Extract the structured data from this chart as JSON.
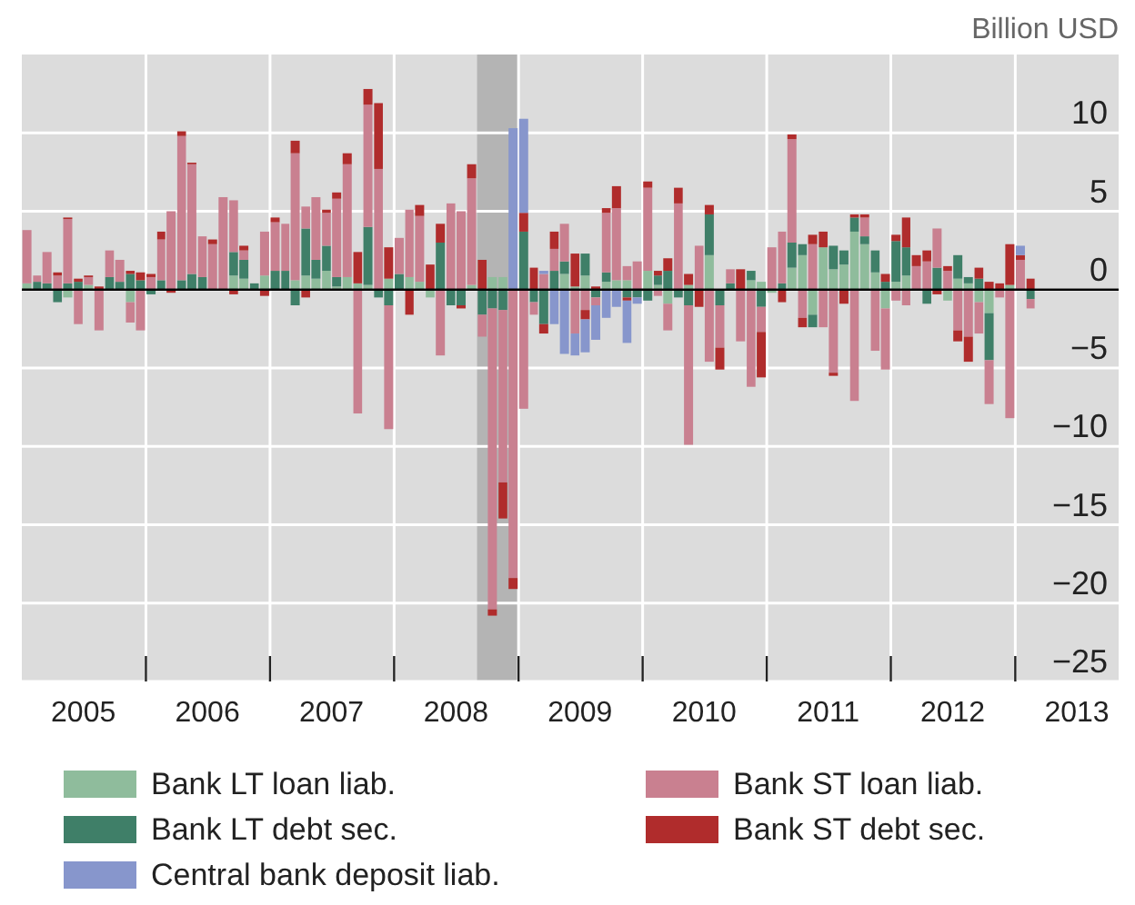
{
  "chart_data": {
    "type": "bar",
    "stacked": true,
    "ylabel": "Billion USD",
    "grid": true,
    "legend": "bottom",
    "xlim": [
      "2005-01",
      "2013-11"
    ],
    "ylim": [
      -25,
      15
    ],
    "yticks": [
      {
        "value": -25,
        "label": "−25"
      },
      {
        "value": -20,
        "label": "−20"
      },
      {
        "value": -15,
        "label": "−15"
      },
      {
        "value": -10,
        "label": "−10"
      },
      {
        "value": -5,
        "label": "−5"
      },
      0,
      5,
      10
    ],
    "xticks": [
      {
        "value": "2005-07",
        "label": "2005"
      },
      {
        "value": "2006",
        "label": null
      },
      {
        "value": "2006-07",
        "label": "2006"
      },
      {
        "value": "2007",
        "label": null
      },
      {
        "value": "2007-07",
        "label": "2007"
      },
      {
        "value": "2008",
        "label": null
      },
      {
        "value": "2008-07",
        "label": "2008"
      },
      {
        "value": "2009",
        "label": null
      },
      {
        "value": "2009-07",
        "label": "2009"
      },
      {
        "value": "2010",
        "label": null
      },
      {
        "value": "2010-07",
        "label": "2010"
      },
      {
        "value": "2011",
        "label": null
      },
      {
        "value": "2011-07",
        "label": "2011"
      },
      {
        "value": "2012",
        "label": null
      },
      {
        "value": "2012-07",
        "label": "2012"
      },
      {
        "value": "2013",
        "label": null
      },
      {
        "value": "2013-07",
        "label": "2013"
      }
    ],
    "bands": [
      {
        "axis": "x",
        "from": "2008-09",
        "to": "2009-01",
        "color": "#b4b4b4"
      }
    ],
    "x": [
      "2005-01-16",
      "2005-02-15",
      "2005-03-16",
      "2005-04-16",
      "2005-05-16",
      "2005-06-16",
      "2005-07-16",
      "2005-08-16",
      "2005-09-16",
      "2005-10-16",
      "2005-11-16",
      "2005-12-16",
      "2006-01-16",
      "2006-02-15",
      "2006-03-16",
      "2006-04-16",
      "2006-05-16",
      "2006-06-16",
      "2006-07-16",
      "2006-08-16",
      "2006-09-16",
      "2006-10-16",
      "2006-11-16",
      "2006-12-16",
      "2007-01-16",
      "2007-02-15",
      "2007-03-16",
      "2007-04-16",
      "2007-05-16",
      "2007-06-16",
      "2007-07-16",
      "2007-08-16",
      "2007-09-16",
      "2007-10-16",
      "2007-11-16",
      "2007-12-16",
      "2008-01-16",
      "2008-02-15",
      "2008-03-16",
      "2008-04-16",
      "2008-05-16",
      "2008-06-16",
      "2008-07-16",
      "2008-08-16",
      "2008-09-16",
      "2008-10-16",
      "2008-11-16",
      "2008-12-16",
      "2009-01-16",
      "2009-02-15",
      "2009-03-16",
      "2009-04-16",
      "2009-05-16",
      "2009-06-16",
      "2009-07-16",
      "2009-08-16",
      "2009-09-16",
      "2009-10-16",
      "2009-11-16",
      "2009-12-16",
      "2010-01-16",
      "2010-02-15",
      "2010-03-16",
      "2010-04-16",
      "2010-05-16",
      "2010-06-16",
      "2010-07-16",
      "2010-08-16",
      "2010-09-16",
      "2010-10-16",
      "2010-11-16",
      "2010-12-16",
      "2011-01-16",
      "2011-02-15",
      "2011-03-16",
      "2011-04-16",
      "2011-05-16",
      "2011-06-16",
      "2011-07-16",
      "2011-08-16",
      "2011-09-16",
      "2011-10-16",
      "2011-11-16",
      "2011-12-16",
      "2012-01-16",
      "2012-02-15",
      "2012-03-16",
      "2012-04-16",
      "2012-05-16",
      "2012-06-16",
      "2012-07-16",
      "2012-08-16",
      "2012-09-16",
      "2012-10-16",
      "2012-11-16",
      "2012-12-16",
      "2013-01-16",
      "2013-02-15"
    ],
    "series": [
      {
        "name": "Bank LT loan liab.",
        "color": "#8fbc9c",
        "values": [
          0.4,
          0,
          0,
          0,
          -0.5,
          0,
          0.3,
          0,
          0,
          0,
          -0.8,
          0,
          0,
          0,
          0,
          0,
          0,
          0,
          0,
          0,
          0.9,
          0.7,
          0,
          0.9,
          0,
          0,
          0.6,
          0.9,
          0.7,
          1.2,
          0.2,
          0.8,
          0.4,
          0.3,
          0,
          0.7,
          0,
          0.8,
          0.5,
          -0.5,
          0,
          0,
          0,
          0.3,
          0,
          0.8,
          0.8,
          0,
          0,
          0,
          0,
          0,
          1.0,
          0.2,
          0.9,
          0,
          0.5,
          0.6,
          0.6,
          0,
          1.2,
          0.3,
          -0.9,
          0,
          0.3,
          0,
          2.2,
          0,
          0,
          0,
          0.6,
          0.5,
          -0.2,
          0,
          1.4,
          2.2,
          -1.6,
          2.7,
          1.3,
          1.6,
          3.7,
          2.9,
          1.1,
          -1.2,
          0.5,
          0.9,
          0,
          0,
          0,
          -0.7,
          0.7,
          0.4,
          -0.8,
          -1.5,
          0,
          0.3,
          0,
          0
        ]
      },
      {
        "name": "Bank LT debt sec.",
        "color": "#3f7f68",
        "values": [
          0,
          0.5,
          0.4,
          -0.8,
          0.4,
          0.5,
          0,
          0,
          0.8,
          0.5,
          1.0,
          0.6,
          -0.3,
          0.6,
          0,
          0.6,
          1.0,
          0.8,
          0,
          0,
          1.5,
          1.2,
          0.4,
          0,
          1.2,
          1.2,
          -1.0,
          3.0,
          1.2,
          1.6,
          0.6,
          0,
          0,
          3.7,
          -0.5,
          -1.0,
          1.0,
          0,
          0,
          0,
          3.0,
          -1.0,
          -1.0,
          0,
          -1.6,
          -1.2,
          -1.3,
          0,
          3.7,
          -0.8,
          -2.2,
          1.2,
          0.8,
          0,
          1.4,
          -0.5,
          0.6,
          0,
          -0.5,
          -0.5,
          -0.7,
          0.6,
          1.2,
          -0.5,
          -1.0,
          0,
          2.6,
          -1.0,
          0.4,
          0,
          0.6,
          -1.1,
          0,
          0.4,
          1.6,
          0.7,
          -0.8,
          0,
          1.5,
          0.9,
          0.9,
          0.5,
          1.4,
          0.5,
          2.6,
          1.8,
          0,
          -0.9,
          1.4,
          0,
          1.5,
          0.4,
          0.7,
          -3.0,
          0,
          0,
          0,
          -0.6
        ]
      },
      {
        "name": "Bank ST loan liab.",
        "color": "#c98090",
        "values": [
          3.4,
          0.4,
          2.0,
          0.9,
          4.1,
          -2.2,
          0.5,
          -2.6,
          1.7,
          1.4,
          -1.3,
          -2.6,
          0.8,
          2.6,
          5.0,
          9.2,
          7.0,
          2.6,
          2.9,
          5.9,
          3.3,
          0.6,
          0,
          2.8,
          3.1,
          3.0,
          8.1,
          1.4,
          4.0,
          2.1,
          5.0,
          7.2,
          -7.9,
          7.8,
          7.7,
          -7.9,
          2.3,
          4.3,
          4.2,
          0,
          -4.2,
          5.5,
          5.0,
          6.8,
          -1.4,
          -19.2,
          -11.0,
          -18.4,
          -7.6,
          -0.8,
          1.0,
          1.4,
          2.4,
          -2.8,
          -1.3,
          -0.5,
          3.8,
          4.6,
          0.9,
          1.8,
          5.3,
          -0.4,
          -1.7,
          5.5,
          -8.9,
          2.8,
          -4.6,
          -2.7,
          0.9,
          -3.3,
          -6.2,
          -1.6,
          2.7,
          3.3,
          6.6,
          -1.8,
          2.9,
          -2.4,
          -5.3,
          0,
          -7.1,
          1.2,
          -3.9,
          -3.9,
          -0.7,
          -1.0,
          1.5,
          1.8,
          2.5,
          1.2,
          -2.6,
          -3.0,
          -2.0,
          -2.8,
          -0.5,
          -8.2,
          1.9,
          -0.6
        ]
      },
      {
        "name": "Bank ST debt sec.",
        "color": "#b02c2c",
        "values": [
          0,
          0,
          0,
          0.2,
          0.1,
          0.2,
          0.1,
          0.2,
          0,
          0,
          0.2,
          0.5,
          0.2,
          0.5,
          -0.2,
          0.3,
          0.1,
          0,
          0.3,
          0,
          -0.3,
          0.3,
          0,
          -0.4,
          0.3,
          0,
          0.8,
          -0.5,
          0,
          0.2,
          0.4,
          0.7,
          2.0,
          1.0,
          4.2,
          2.0,
          0,
          -1.6,
          0.7,
          1.6,
          1.2,
          0,
          -0.2,
          0.9,
          1.9,
          -0.4,
          -2.3,
          -0.7,
          1.2,
          1.4,
          -0.6,
          1.1,
          0,
          2.1,
          -0.6,
          0.2,
          0.3,
          1.4,
          -0.2,
          0,
          0.4,
          0.3,
          0.8,
          1.0,
          0.7,
          -1.1,
          0.6,
          -1.4,
          0,
          1.3,
          0,
          -2.9,
          0,
          -0.8,
          0.3,
          -0.6,
          0.6,
          1.0,
          -0.2,
          -0.9,
          0.2,
          0.2,
          0,
          0.5,
          0.4,
          1.9,
          0.7,
          0.7,
          -0.3,
          0.3,
          -0.7,
          -1.6,
          0.7,
          0.5,
          0.4,
          2.6,
          0.3,
          0.7
        ]
      },
      {
        "name": "Central bank deposit liab.",
        "color": "#8796cc",
        "values": [
          0,
          0,
          0,
          0,
          0,
          0,
          0,
          0,
          0,
          0,
          0,
          0,
          0,
          0,
          0,
          0,
          0,
          0,
          0,
          0,
          0,
          0,
          0,
          0,
          0,
          0,
          0,
          0,
          0,
          0,
          0,
          0,
          0,
          0,
          0,
          0,
          0,
          0,
          0,
          0,
          0,
          0,
          0,
          0,
          0,
          0,
          0,
          10.3,
          6.0,
          0,
          0.2,
          -2.2,
          -4.1,
          -1.4,
          -2.1,
          -2.2,
          -1.8,
          -1.1,
          -2.7,
          -0.4,
          0,
          0,
          0,
          0,
          0,
          0,
          0,
          0,
          0,
          0,
          0,
          0,
          0,
          0,
          0,
          0,
          0,
          0,
          0,
          0,
          0,
          0,
          0,
          0,
          0,
          0,
          0,
          0,
          0,
          0,
          0,
          0,
          0,
          null,
          0,
          0,
          0.6,
          0
        ]
      }
    ]
  }
}
